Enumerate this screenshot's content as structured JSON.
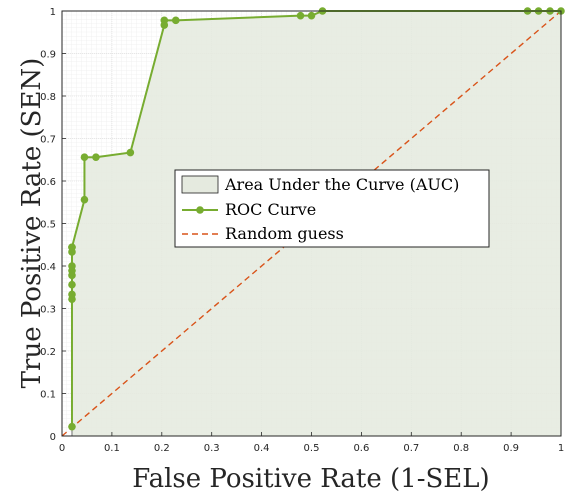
{
  "chart_data": {
    "type": "line",
    "xlabel": "False Positive Rate (1-SEL)",
    "ylabel": "True Positive Rate (SEN)",
    "xlim": [
      0,
      1
    ],
    "ylim": [
      0,
      1
    ],
    "x_ticks": [
      "0",
      "0.1",
      "0.2",
      "0.3",
      "0.4",
      "0.5",
      "0.6",
      "0.7",
      "0.8",
      "0.9",
      "1"
    ],
    "y_ticks": [
      "0",
      "0.1",
      "0.2",
      "0.3",
      "0.4",
      "0.5",
      "0.6",
      "0.7",
      "0.8",
      "0.9",
      "1"
    ],
    "grid": true,
    "legend_position": "center-right",
    "series": [
      {
        "name": "ROC Curve",
        "color": "#77ac30",
        "marker": "circle",
        "x": [
          0.02,
          0.02,
          0.02,
          0.02,
          0.02,
          0.02,
          0.02,
          0.02,
          0.02,
          0.02,
          0.045,
          0.045,
          0.068,
          0.137,
          0.205,
          0.205,
          0.228,
          0.478,
          0.5,
          0.522,
          0.933,
          0.955,
          0.978,
          1.0
        ],
        "y": [
          0.022,
          0.322,
          0.333,
          0.356,
          0.378,
          0.389,
          0.4,
          0.433,
          0.444,
          0.444,
          0.556,
          0.656,
          0.656,
          0.667,
          0.967,
          0.978,
          0.978,
          0.989,
          0.989,
          1.0,
          1.0,
          1.0,
          1.0,
          1.0
        ]
      },
      {
        "name": "Random guess",
        "color": "#d95319",
        "style": "dashed",
        "x": [
          0,
          1
        ],
        "y": [
          0,
          1
        ]
      }
    ],
    "area": {
      "name": "Area Under the Curve (AUC)",
      "fill": "#e5eadf",
      "edge": "#1e1e1e"
    }
  }
}
